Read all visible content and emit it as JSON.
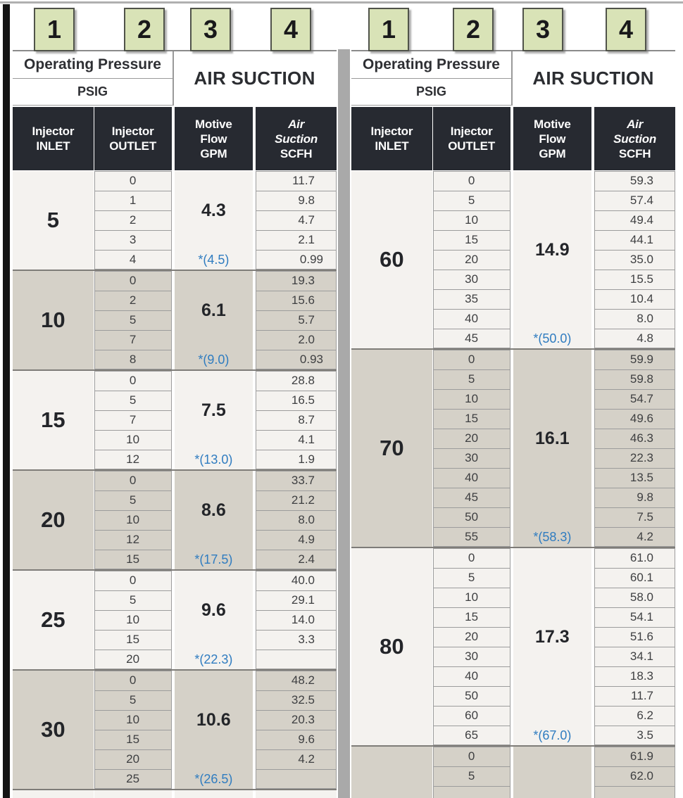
{
  "badges": [
    "1",
    "2",
    "3",
    "4"
  ],
  "header": {
    "operating_pressure": "Operating Pressure",
    "psig": "PSIG",
    "air_suction": "AIR SUCTION",
    "columns": {
      "inlet": [
        "Injector",
        "INLET"
      ],
      "outlet": [
        "Injector",
        "OUTLET"
      ],
      "motive_flow": [
        "Motive",
        "Flow",
        "GPM"
      ],
      "air_suction_col": [
        "Air",
        "Suction",
        "SCFH"
      ]
    }
  },
  "colors": {
    "group_light": "#f4f2ef",
    "group_dark": "#d5d1c8",
    "header_dark": "#272a31",
    "star_blue": "#2f7cc0",
    "badge_green": "#d9e3b7",
    "divider_gray": "#a9a9a9"
  },
  "tables": {
    "left": {
      "groups": [
        {
          "inlet": "5",
          "gpm": "4.3",
          "gpm_star": "*(4.5)",
          "rows": [
            {
              "outlet": "0",
              "scfh": "11.7"
            },
            {
              "outlet": "1",
              "scfh": "9.8"
            },
            {
              "outlet": "2",
              "scfh": "4.7"
            },
            {
              "outlet": "3",
              "scfh": "2.1"
            },
            {
              "outlet": "4",
              "scfh": "0.99"
            }
          ]
        },
        {
          "inlet": "10",
          "gpm": "6.1",
          "gpm_star": "*(9.0)",
          "rows": [
            {
              "outlet": "0",
              "scfh": "19.3"
            },
            {
              "outlet": "2",
              "scfh": "15.6"
            },
            {
              "outlet": "5",
              "scfh": "5.7"
            },
            {
              "outlet": "7",
              "scfh": "2.0"
            },
            {
              "outlet": "8",
              "scfh": "0.93"
            }
          ]
        },
        {
          "inlet": "15",
          "gpm": "7.5",
          "gpm_star": "*(13.0)",
          "rows": [
            {
              "outlet": "0",
              "scfh": "28.8"
            },
            {
              "outlet": "5",
              "scfh": "16.5"
            },
            {
              "outlet": "7",
              "scfh": "8.7"
            },
            {
              "outlet": "10",
              "scfh": "4.1"
            },
            {
              "outlet": "12",
              "scfh": "1.9"
            }
          ]
        },
        {
          "inlet": "20",
          "gpm": "8.6",
          "gpm_star": "*(17.5)",
          "rows": [
            {
              "outlet": "0",
              "scfh": "33.7"
            },
            {
              "outlet": "5",
              "scfh": "21.2"
            },
            {
              "outlet": "10",
              "scfh": "8.0"
            },
            {
              "outlet": "12",
              "scfh": "4.9"
            },
            {
              "outlet": "15",
              "scfh": "2.4"
            }
          ]
        },
        {
          "inlet": "25",
          "gpm": "9.6",
          "gpm_star": "*(22.3)",
          "rows": [
            {
              "outlet": "0",
              "scfh": "40.0"
            },
            {
              "outlet": "5",
              "scfh": "29.1"
            },
            {
              "outlet": "10",
              "scfh": "14.0"
            },
            {
              "outlet": "15",
              "scfh": "3.3"
            },
            {
              "outlet": "20",
              "scfh": ""
            }
          ]
        },
        {
          "inlet": "30",
          "gpm": "10.6",
          "gpm_star": "*(26.5)",
          "rows": [
            {
              "outlet": "0",
              "scfh": "48.2"
            },
            {
              "outlet": "5",
              "scfh": "32.5"
            },
            {
              "outlet": "10",
              "scfh": "20.3"
            },
            {
              "outlet": "15",
              "scfh": "9.6"
            },
            {
              "outlet": "20",
              "scfh": "4.2"
            },
            {
              "outlet": "25",
              "scfh": ""
            }
          ]
        },
        {
          "inlet": "",
          "gpm": "",
          "gpm_star": "",
          "partial": true,
          "rows": []
        }
      ]
    },
    "right": {
      "groups": [
        {
          "inlet": "60",
          "gpm": "14.9",
          "gpm_star": "*(50.0)",
          "rows": [
            {
              "outlet": "0",
              "scfh": "59.3"
            },
            {
              "outlet": "5",
              "scfh": "57.4"
            },
            {
              "outlet": "10",
              "scfh": "49.4"
            },
            {
              "outlet": "15",
              "scfh": "44.1"
            },
            {
              "outlet": "20",
              "scfh": "35.0"
            },
            {
              "outlet": "30",
              "scfh": "15.5"
            },
            {
              "outlet": "35",
              "scfh": "10.4"
            },
            {
              "outlet": "40",
              "scfh": "8.0"
            },
            {
              "outlet": "45",
              "scfh": "4.8"
            }
          ]
        },
        {
          "inlet": "70",
          "gpm": "16.1",
          "gpm_star": "*(58.3)",
          "rows": [
            {
              "outlet": "0",
              "scfh": "59.9"
            },
            {
              "outlet": "5",
              "scfh": "59.8"
            },
            {
              "outlet": "10",
              "scfh": "54.7"
            },
            {
              "outlet": "15",
              "scfh": "49.6"
            },
            {
              "outlet": "20",
              "scfh": "46.3"
            },
            {
              "outlet": "30",
              "scfh": "22.3"
            },
            {
              "outlet": "40",
              "scfh": "13.5"
            },
            {
              "outlet": "45",
              "scfh": "9.8"
            },
            {
              "outlet": "50",
              "scfh": "7.5"
            },
            {
              "outlet": "55",
              "scfh": "4.2"
            }
          ]
        },
        {
          "inlet": "80",
          "gpm": "17.3",
          "gpm_star": "*(67.0)",
          "rows": [
            {
              "outlet": "0",
              "scfh": "61.0"
            },
            {
              "outlet": "5",
              "scfh": "60.1"
            },
            {
              "outlet": "10",
              "scfh": "58.0"
            },
            {
              "outlet": "15",
              "scfh": "54.1"
            },
            {
              "outlet": "20",
              "scfh": "51.6"
            },
            {
              "outlet": "30",
              "scfh": "34.1"
            },
            {
              "outlet": "40",
              "scfh": "18.3"
            },
            {
              "outlet": "50",
              "scfh": "11.7"
            },
            {
              "outlet": "60",
              "scfh": "6.2"
            },
            {
              "outlet": "65",
              "scfh": "3.5"
            }
          ]
        },
        {
          "inlet": "",
          "gpm": "",
          "gpm_star": "",
          "rows": [
            {
              "outlet": "0",
              "scfh": "61.9"
            },
            {
              "outlet": "5",
              "scfh": "62.0"
            },
            {
              "outlet": "",
              "scfh": ""
            }
          ]
        }
      ]
    }
  }
}
